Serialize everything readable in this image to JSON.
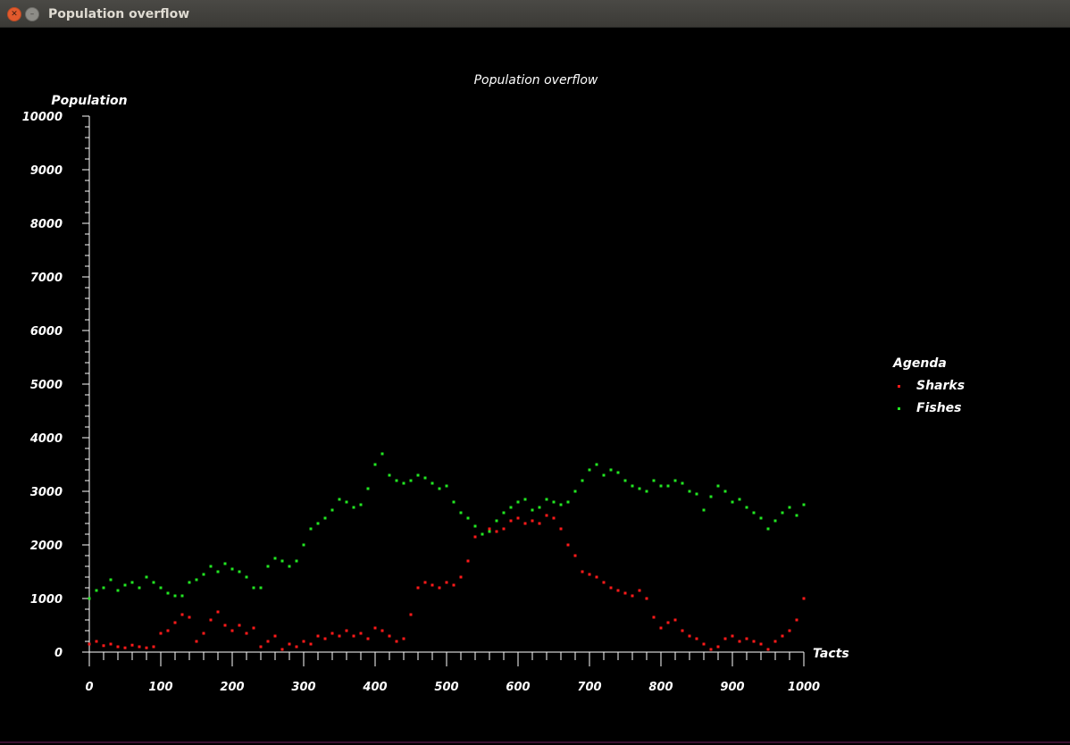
{
  "window": {
    "title": "Population overflow",
    "close_icon": "close-icon",
    "minimize_icon": "minimize-icon"
  },
  "colors": {
    "sharks": "#ff1a1a",
    "fishes": "#22e622",
    "axis": "#ffffff",
    "background": "#000000"
  },
  "chart_data": {
    "type": "scatter",
    "title": "Population overflow",
    "xlabel": "Tacts",
    "ylabel": "Population",
    "xlim": [
      0,
      1000
    ],
    "ylim": [
      0,
      10000
    ],
    "xticks": [
      0,
      100,
      200,
      300,
      400,
      500,
      600,
      700,
      800,
      900,
      1000
    ],
    "yticks": [
      0,
      1000,
      2000,
      3000,
      4000,
      5000,
      6000,
      7000,
      8000,
      9000,
      10000
    ],
    "legend": {
      "title": "Agenda",
      "placement": "right"
    },
    "series": [
      {
        "name": "Sharks",
        "color": "#ff1a1a",
        "x": [
          0,
          10,
          20,
          30,
          40,
          50,
          60,
          70,
          80,
          90,
          100,
          110,
          120,
          130,
          140,
          150,
          160,
          170,
          180,
          190,
          200,
          210,
          220,
          230,
          240,
          250,
          260,
          270,
          280,
          290,
          300,
          310,
          320,
          330,
          340,
          350,
          360,
          370,
          380,
          390,
          400,
          410,
          420,
          430,
          440,
          450,
          460,
          470,
          480,
          490,
          500,
          510,
          520,
          530,
          540,
          550,
          560,
          570,
          580,
          590,
          600,
          610,
          620,
          630,
          640,
          650,
          660,
          670,
          680,
          690,
          700,
          710,
          720,
          730,
          740,
          750,
          760,
          770,
          780,
          790,
          800,
          810,
          820,
          830,
          840,
          850,
          860,
          870,
          880,
          890,
          900,
          910,
          920,
          930,
          940,
          950,
          960,
          970,
          980,
          990,
          1000
        ],
        "y": [
          150,
          200,
          120,
          150,
          100,
          80,
          130,
          100,
          80,
          100,
          350,
          400,
          550,
          700,
          650,
          200,
          350,
          600,
          750,
          500,
          400,
          500,
          350,
          450,
          100,
          200,
          300,
          50,
          150,
          100,
          200,
          150,
          300,
          250,
          350,
          300,
          400,
          300,
          350,
          250,
          450,
          400,
          300,
          200,
          250,
          700,
          1200,
          1300,
          1250,
          1200,
          1300,
          1250,
          1400,
          1700,
          2150,
          2200,
          2300,
          2250,
          2300,
          2450,
          2500,
          2400,
          2450,
          2400,
          2550,
          2500,
          2300,
          2000,
          1800,
          1500,
          1450,
          1400,
          1300,
          1200,
          1150,
          1100,
          1050,
          1150,
          1000,
          650,
          450,
          550,
          600,
          400,
          300,
          250,
          150,
          50,
          100,
          250,
          300,
          200,
          250,
          200,
          150,
          50,
          200,
          300,
          400,
          600,
          1000
        ]
      },
      {
        "name": "Fishes",
        "color": "#22e622",
        "x": [
          0,
          10,
          20,
          30,
          40,
          50,
          60,
          70,
          80,
          90,
          100,
          110,
          120,
          130,
          140,
          150,
          160,
          170,
          180,
          190,
          200,
          210,
          220,
          230,
          240,
          250,
          260,
          270,
          280,
          290,
          300,
          310,
          320,
          330,
          340,
          350,
          360,
          370,
          380,
          390,
          400,
          410,
          420,
          430,
          440,
          450,
          460,
          470,
          480,
          490,
          500,
          510,
          520,
          530,
          540,
          550,
          560,
          570,
          580,
          590,
          600,
          610,
          620,
          630,
          640,
          650,
          660,
          670,
          680,
          690,
          700,
          710,
          720,
          730,
          740,
          750,
          760,
          770,
          780,
          790,
          800,
          810,
          820,
          830,
          840,
          850,
          860,
          870,
          880,
          890,
          900,
          910,
          920,
          930,
          940,
          950,
          960,
          970,
          980,
          990,
          1000
        ],
        "y": [
          1000,
          1150,
          1200,
          1350,
          1150,
          1250,
          1300,
          1200,
          1400,
          1300,
          1200,
          1100,
          1050,
          1050,
          1300,
          1350,
          1450,
          1600,
          1500,
          1650,
          1550,
          1500,
          1400,
          1200,
          1200,
          1600,
          1750,
          1700,
          1600,
          1700,
          2000,
          2300,
          2400,
          2500,
          2650,
          2850,
          2800,
          2700,
          2750,
          3050,
          3500,
          3700,
          3300,
          3200,
          3150,
          3200,
          3300,
          3250,
          3150,
          3050,
          3100,
          2800,
          2600,
          2500,
          2350,
          2200,
          2250,
          2450,
          2600,
          2700,
          2800,
          2850,
          2650,
          2700,
          2850,
          2800,
          2750,
          2800,
          3000,
          3200,
          3400,
          3500,
          3300,
          3400,
          3350,
          3200,
          3100,
          3050,
          3000,
          3200,
          3100,
          3100,
          3200,
          3150,
          3000,
          2950,
          2650,
          2900,
          3100,
          3000,
          2800,
          2850,
          2700,
          2600,
          2500,
          2300,
          2450,
          2600,
          2700,
          2550,
          2750
        ]
      }
    ]
  }
}
